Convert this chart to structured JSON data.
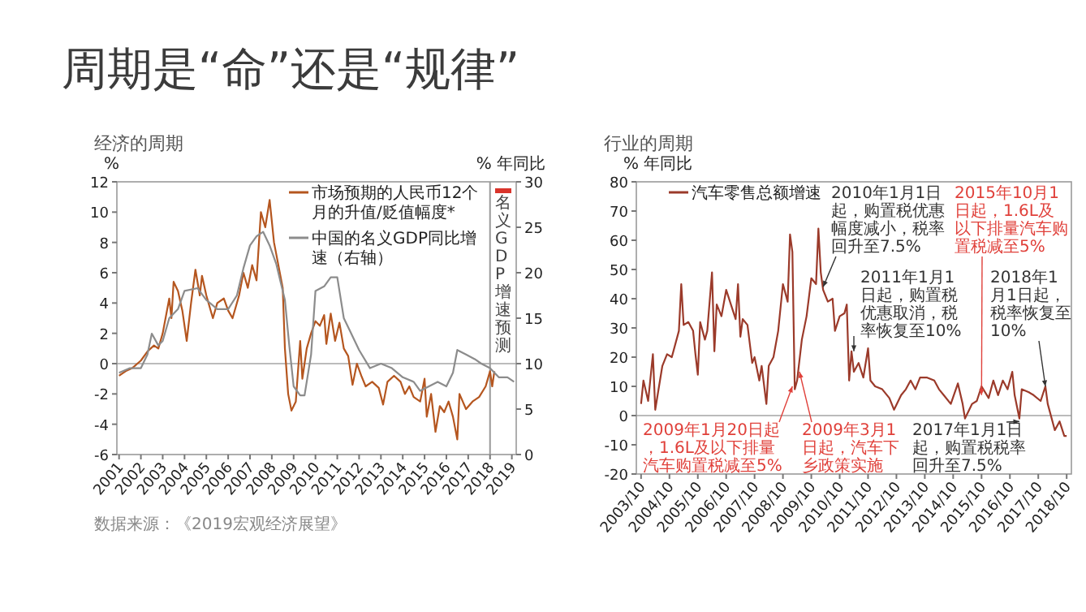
{
  "chart_data": [
    {
      "type": "line",
      "title": "周期是“命”还是“规律”",
      "subtitle": "经济的周期",
      "ylabel": "%",
      "y2label": "% 年同比",
      "xlim": [
        2000.9,
        2019.2
      ],
      "xticks": [
        2001,
        2002,
        2003,
        2004,
        2005,
        2006,
        2007,
        2008,
        2009,
        2010,
        2011,
        2012,
        2013,
        2014,
        2015,
        2016,
        2017,
        2018,
        2019
      ],
      "ylim": [
        -6,
        12
      ],
      "yticks": [
        -6,
        -4,
        -2,
        0,
        2,
        4,
        6,
        8,
        10,
        12
      ],
      "y2lim": [
        0,
        30
      ],
      "y2ticks": [
        0,
        5,
        10,
        15,
        20,
        25,
        30
      ],
      "legend": "top right",
      "series": [
        {
          "name": "市场预期的人民币12个月的升值/贬值幅度*",
          "color": "#b5561f",
          "x": [
            2001.0,
            2001.3,
            2001.6,
            2002.0,
            2002.3,
            2002.6,
            2002.8,
            2003.0,
            2003.3,
            2003.4,
            2003.5,
            2003.7,
            2003.9,
            2004.1,
            2004.3,
            2004.5,
            2004.7,
            2004.8,
            2005.0,
            2005.3,
            2005.5,
            2005.8,
            2006.0,
            2006.2,
            2006.5,
            2006.7,
            2006.9,
            2007.1,
            2007.3,
            2007.5,
            2007.7,
            2007.9,
            2008.1,
            2008.3,
            2008.5,
            2008.6,
            2008.75,
            2008.9,
            2009.1,
            2009.3,
            2009.4,
            2009.6,
            2009.8,
            2010.0,
            2010.2,
            2010.4,
            2010.5,
            2010.7,
            2010.9,
            2011.1,
            2011.3,
            2011.5,
            2011.7,
            2011.9,
            2012.1,
            2012.3,
            2012.6,
            2012.9,
            2013.1,
            2013.3,
            2013.6,
            2013.9,
            2014.1,
            2014.3,
            2014.5,
            2014.8,
            2015.0,
            2015.1,
            2015.3,
            2015.5,
            2015.7,
            2015.9,
            2016.1,
            2016.3,
            2016.5,
            2016.6,
            2016.9,
            2017.2,
            2017.5,
            2017.8,
            2018.0,
            2018.1,
            2018.2
          ],
          "values": [
            -0.8,
            -0.5,
            -0.3,
            0.2,
            0.8,
            1.2,
            1.0,
            2.0,
            4.3,
            3.0,
            5.4,
            4.8,
            3.5,
            1.5,
            4.0,
            6.2,
            4.5,
            5.8,
            4.5,
            3.0,
            4.0,
            4.3,
            3.5,
            3.0,
            4.5,
            6.0,
            5.0,
            6.5,
            5.5,
            10.0,
            9.0,
            10.8,
            8.0,
            6.5,
            5.0,
            1.0,
            -2.0,
            -3.1,
            -2.5,
            1.5,
            -1.0,
            1.0,
            2.0,
            2.8,
            2.5,
            3.2,
            1.3,
            3.3,
            1.5,
            2.7,
            1.0,
            0.5,
            -1.4,
            0.0,
            -0.8,
            -1.5,
            -1.2,
            -1.6,
            -2.7,
            -1.2,
            -0.8,
            -1.2,
            -2.0,
            -1.5,
            -2.2,
            -2.5,
            -1.0,
            -3.5,
            -2.0,
            -4.5,
            -2.8,
            -3.2,
            -2.5,
            -3.5,
            -5.0,
            -2.0,
            -3.0,
            -2.5,
            -2.2,
            -1.5,
            -0.5,
            -1.5,
            -0.5
          ]
        },
        {
          "name": "中国的名义GDP同比增速（右轴）",
          "color": "#8c8c8c",
          "axis": "y2",
          "x": [
            2001.0,
            2001.5,
            2002.0,
            2002.3,
            2002.5,
            2002.8,
            2003.0,
            2003.3,
            2003.7,
            2004.0,
            2004.6,
            2005.0,
            2005.5,
            2006.0,
            2006.4,
            2006.7,
            2007.0,
            2007.3,
            2007.6,
            2007.9,
            2008.2,
            2008.4,
            2008.6,
            2008.8,
            2009.0,
            2009.3,
            2009.5,
            2009.8,
            2010.0,
            2010.4,
            2010.7,
            2011.0,
            2011.3,
            2011.6,
            2012.0,
            2012.5,
            2013.0,
            2013.5,
            2014.0,
            2014.5,
            2014.8,
            2015.2,
            2015.6,
            2016.0,
            2016.3,
            2016.5,
            2016.9,
            2017.3,
            2017.6,
            2018.0,
            2018.4,
            2018.8,
            2019.1
          ],
          "values": [
            9.0,
            9.5,
            9.5,
            11.0,
            13.3,
            12.0,
            12.5,
            15.0,
            16.0,
            18.0,
            18.3,
            17.0,
            16.0,
            16.0,
            17.5,
            20.5,
            23.0,
            24.0,
            24.5,
            23.0,
            21.0,
            19.0,
            17.0,
            12.0,
            7.5,
            6.5,
            6.5,
            11.0,
            18.0,
            18.5,
            19.5,
            19.5,
            15.0,
            13.5,
            11.5,
            9.5,
            10.0,
            9.5,
            8.5,
            8.0,
            7.0,
            7.5,
            8.0,
            7.5,
            9.0,
            11.5,
            11.0,
            10.5,
            10.0,
            9.5,
            8.5,
            8.5,
            8.0
          ]
        }
      ],
      "ref_lines": [
        {
          "axis": "y",
          "value": 0,
          "color": "#bbbbbb"
        },
        {
          "axis": "x",
          "value": 2018,
          "color": "#999999"
        }
      ],
      "annotations": [
        "名义GDP增速预测",
        "数据来源：《2019宏观经济展望》"
      ]
    },
    {
      "type": "line",
      "title": "行业的周期",
      "ylabel": "% 年同比",
      "xlim": [
        "2003-08",
        "2018-12"
      ],
      "xticks": [
        {
          "value": "2003-10",
          "label": "2003/10"
        },
        {
          "value": "2004-10",
          "label": "2004/10"
        },
        {
          "value": "2005-10",
          "label": "2005/10"
        },
        {
          "value": "2006-10",
          "label": "2006/10"
        },
        {
          "value": "2007-10",
          "label": "2007/10"
        },
        {
          "value": "2008-10",
          "label": "2008/10"
        },
        {
          "value": "2009-10",
          "label": "2009/10"
        },
        {
          "value": "2010-10",
          "label": "2010/10"
        },
        {
          "value": "2011-10",
          "label": "2011/10"
        },
        {
          "value": "2012-10",
          "label": "2012/10"
        },
        {
          "value": "2013-10",
          "label": "2013/10"
        },
        {
          "value": "2014-10",
          "label": "2014/10"
        },
        {
          "value": "2015-10",
          "label": "2015/10"
        },
        {
          "value": "2016-10",
          "label": "2016/10"
        },
        {
          "value": "2017-10",
          "label": "2017/10"
        },
        {
          "value": "2018-10",
          "label": "2018/10"
        }
      ],
      "ylim": [
        -20,
        80
      ],
      "yticks": [
        -20,
        -10,
        0,
        10,
        20,
        30,
        40,
        50,
        60,
        70,
        80
      ],
      "legend": "top left",
      "series": [
        {
          "name": "汽车零售总额增速",
          "color": "#9b3a2a",
          "x": [
            "2003-10",
            "2003-11",
            "2004-01",
            "2004-03",
            "2004-04",
            "2004-07",
            "2004-09",
            "2004-11",
            "2005-02",
            "2005-03",
            "2005-04",
            "2005-06",
            "2005-08",
            "2005-09",
            "2005-10",
            "2005-11",
            "2006-01",
            "2006-02",
            "2006-04",
            "2006-05",
            "2006-06",
            "2006-08",
            "2006-10",
            "2006-12",
            "2007-02",
            "2007-03",
            "2007-04",
            "2007-05",
            "2007-07",
            "2007-09",
            "2007-10",
            "2007-12",
            "2008-01",
            "2008-03",
            "2008-04",
            "2008-06",
            "2008-08",
            "2008-10",
            "2008-12",
            "2009-01",
            "2009-02",
            "2009-03",
            "2009-04",
            "2009-06",
            "2009-08",
            "2009-10",
            "2009-12",
            "2010-01",
            "2010-02",
            "2010-03",
            "2010-05",
            "2010-07",
            "2010-08",
            "2010-10",
            "2010-12",
            "2011-01",
            "2011-02",
            "2011-03",
            "2011-04",
            "2011-06",
            "2011-08",
            "2011-10",
            "2011-11",
            "2012-01",
            "2012-04",
            "2012-07",
            "2012-09",
            "2012-12",
            "2013-02",
            "2013-04",
            "2013-06",
            "2013-08",
            "2013-11",
            "2014-02",
            "2014-04",
            "2014-06",
            "2014-09",
            "2014-12",
            "2015-02",
            "2015-03",
            "2015-06",
            "2015-08",
            "2015-10",
            "2016-01",
            "2016-03",
            "2016-05",
            "2016-07",
            "2016-09",
            "2016-11",
            "2016-12",
            "2017-02",
            "2017-03",
            "2017-06",
            "2017-08",
            "2017-11",
            "2018-01",
            "2018-02",
            "2018-05",
            "2018-07",
            "2018-09",
            "2018-10"
          ],
          "values": [
            4,
            12,
            5,
            21,
            2,
            17,
            21,
            20,
            29,
            45,
            31,
            32,
            29,
            21,
            14,
            32,
            26,
            29,
            49,
            22,
            38,
            34,
            43,
            38,
            33,
            45,
            27,
            33,
            31,
            18,
            20,
            12,
            17,
            4,
            17,
            20,
            29,
            45,
            39,
            62,
            56,
            9,
            12,
            26,
            34,
            47,
            45,
            64,
            49,
            43,
            39,
            40,
            29,
            34,
            35,
            38,
            12,
            22,
            15,
            18,
            13,
            23,
            12,
            10,
            9,
            6,
            2,
            7,
            9,
            12,
            9,
            13,
            13,
            12,
            9,
            7,
            4,
            11,
            4,
            -1,
            4,
            5,
            10,
            6,
            12,
            7,
            12,
            9,
            15,
            7,
            -1,
            9,
            8,
            7,
            5,
            10,
            4,
            -5,
            -2,
            -7,
            -7
          ]
        }
      ],
      "ref_lines": [
        {
          "axis": "y",
          "value": 0,
          "color": "#bbbbbb"
        }
      ],
      "annotations": [
        {
          "text": "2010年1月1日起，购置税优惠幅度减小，税率回升至7.5%",
          "x": "2010-03",
          "y": 44
        },
        {
          "text": "2011年1月1日起，购置税优惠取消，税率恢复至10%",
          "x": "2011-04",
          "y": 22
        },
        {
          "text": "2015年10月1日起，1.6L及以下排量汽车购置税减至5%",
          "x": "2015-10",
          "y": 7
        },
        {
          "text": "2018年1月1日起，税率恢复至10%",
          "x": "2018-01",
          "y": 10
        },
        {
          "text": "2009年1月20日起，1.6L及以下排量汽车购置税减至5%",
          "x": "2009-02",
          "y": 10
        },
        {
          "text": "2009年3月1日起，汽车下乡政策实施",
          "x": "2009-05",
          "y": 15
        },
        {
          "text": "2017年1月1日起，购置税税率回升至7.5%",
          "x": "2017-02",
          "y": -2
        }
      ]
    }
  ]
}
